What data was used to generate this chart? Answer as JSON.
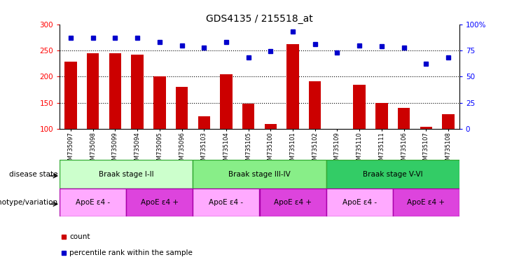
{
  "title": "GDS4135 / 215518_at",
  "samples": [
    "GSM735097",
    "GSM735098",
    "GSM735099",
    "GSM735094",
    "GSM735095",
    "GSM735096",
    "GSM735103",
    "GSM735104",
    "GSM735105",
    "GSM735100",
    "GSM735101",
    "GSM735102",
    "GSM735109",
    "GSM735110",
    "GSM735111",
    "GSM735106",
    "GSM735107",
    "GSM735108"
  ],
  "counts": [
    228,
    245,
    245,
    242,
    201,
    180,
    125,
    205,
    148,
    110,
    262,
    191,
    101,
    184,
    150,
    140,
    104,
    128
  ],
  "percentiles": [
    87,
    87,
    87,
    87,
    83,
    80,
    78,
    83,
    68,
    74,
    93,
    81,
    73,
    80,
    79,
    78,
    62,
    68
  ],
  "ylim_left": [
    100,
    300
  ],
  "ylim_right": [
    0,
    100
  ],
  "yticks_left": [
    100,
    150,
    200,
    250,
    300
  ],
  "yticks_right": [
    0,
    25,
    50,
    75,
    100
  ],
  "bar_color": "#cc0000",
  "dot_color": "#0000cc",
  "disease_groups": [
    {
      "label": "Braak stage I-II",
      "start": 0,
      "end": 6,
      "color": "#ccffcc",
      "edgecolor": "#33aa33"
    },
    {
      "label": "Braak stage III-IV",
      "start": 6,
      "end": 12,
      "color": "#88ee88",
      "edgecolor": "#33aa33"
    },
    {
      "label": "Braak stage V-VI",
      "start": 12,
      "end": 18,
      "color": "#33cc66",
      "edgecolor": "#33aa33"
    }
  ],
  "genotype_groups": [
    {
      "label": "ApoE ε4 -",
      "start": 0,
      "end": 3,
      "color": "#ffaaff",
      "edgecolor": "#aa00aa"
    },
    {
      "label": "ApoE ε4 +",
      "start": 3,
      "end": 6,
      "color": "#dd44dd",
      "edgecolor": "#aa00aa"
    },
    {
      "label": "ApoE ε4 -",
      "start": 6,
      "end": 9,
      "color": "#ffaaff",
      "edgecolor": "#aa00aa"
    },
    {
      "label": "ApoE ε4 +",
      "start": 9,
      "end": 12,
      "color": "#dd44dd",
      "edgecolor": "#aa00aa"
    },
    {
      "label": "ApoE ε4 -",
      "start": 12,
      "end": 15,
      "color": "#ffaaff",
      "edgecolor": "#aa00aa"
    },
    {
      "label": "ApoE ε4 +",
      "start": 15,
      "end": 18,
      "color": "#dd44dd",
      "edgecolor": "#aa00aa"
    }
  ],
  "label_disease": "disease state",
  "label_genotype": "genotype/variation",
  "background_color": "#ffffff",
  "dotted_lines": [
    150,
    200,
    250
  ]
}
